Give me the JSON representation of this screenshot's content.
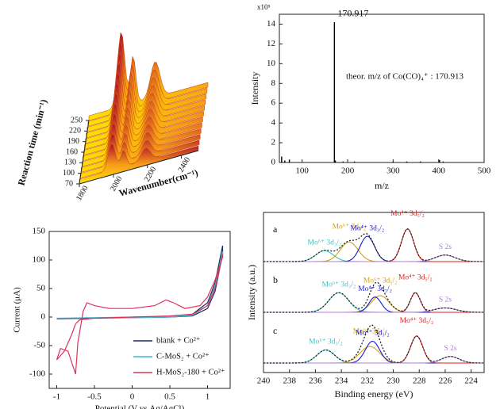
{
  "chart_data": [
    {
      "type": "surface3d",
      "xlabel": "Wavenumber(cm⁻¹)",
      "ylabel": "Reaction time (min⁻¹)",
      "xlim": [
        1800,
        2500
      ],
      "xticks": [
        1800,
        2000,
        2200,
        2400
      ],
      "ylim": [
        70,
        250
      ],
      "yticks": [
        70,
        100,
        130,
        160,
        190,
        220,
        250
      ]
    },
    {
      "type": "stem",
      "xlabel": "m/z",
      "ylabel": "Intensity",
      "y_multiplier": "x10⁵",
      "annotations": [
        "170.917",
        "theor.  m/z of Co(CO)₄⁺ : 170.913"
      ],
      "xlim": [
        50,
        500
      ],
      "xticks": [
        100,
        200,
        300,
        400,
        500
      ],
      "ylim": [
        0,
        15
      ],
      "yticks": [
        0,
        2,
        4,
        6,
        8,
        10,
        12,
        14
      ],
      "color": "#000000",
      "x": [
        55,
        62,
        72,
        170.917,
        173,
        190,
        215,
        300,
        330,
        360,
        402,
        410
      ],
      "values": [
        0.6,
        0.2,
        0.3,
        14.2,
        0.2,
        0.1,
        0.1,
        0.08,
        0.1,
        0.1,
        0.25,
        0.1
      ]
    },
    {
      "type": "line",
      "xlabel": "Potential (V vs.Ag/AgCl)",
      "ylabel": "Current (μA)",
      "xlim": [
        -1.1,
        1.3
      ],
      "xticks": [
        -1.0,
        -0.5,
        0.0,
        0.5,
        1.0
      ],
      "ylim": [
        -125,
        150
      ],
      "yticks": [
        -100,
        -50,
        0,
        50,
        100,
        150
      ],
      "legend": "lower right",
      "series": [
        {
          "name": "blank + Co²⁺",
          "color": "#1f2a5a",
          "x": [
            -1.0,
            -0.5,
            0,
            0.5,
            0.8,
            1.0,
            1.1,
            1.2,
            1.2,
            1.1,
            1.0,
            0.8,
            0.5,
            0,
            -0.5,
            -1.0
          ],
          "y": [
            -3,
            -2,
            -1,
            0,
            2,
            15,
            45,
            110,
            125,
            60,
            25,
            5,
            1,
            -1,
            -2,
            -3
          ]
        },
        {
          "name": "C-MoS₂ + Co²⁺",
          "color": "#3fb8cf",
          "x": [
            -1.0,
            -0.5,
            0,
            0.5,
            0.8,
            1.0,
            1.1,
            1.2,
            1.2,
            1.1,
            1.0,
            0.8,
            0.5,
            0,
            -0.5,
            -1.0
          ],
          "y": [
            -2,
            -1,
            0,
            1,
            4,
            20,
            52,
            108,
            115,
            55,
            20,
            3,
            0,
            -1,
            -1,
            -2
          ]
        },
        {
          "name": "H-MoS₂-180 + Co²⁺",
          "color": "#e0305a",
          "x": [
            -1.0,
            -0.95,
            -0.85,
            -0.8,
            -0.75,
            -0.72,
            -0.65,
            -0.6,
            -0.5,
            -0.3,
            0,
            0.3,
            0.45,
            0.55,
            0.7,
            0.9,
            1.0,
            1.1,
            1.2,
            1.2,
            1.1,
            1.0,
            0.8,
            0.5,
            0,
            -0.5,
            -0.7,
            -0.75,
            -0.8,
            -0.9,
            -1.0
          ],
          "y": [
            -75,
            -55,
            -60,
            -80,
            -100,
            -45,
            10,
            25,
            20,
            15,
            15,
            20,
            30,
            25,
            15,
            20,
            35,
            65,
            105,
            110,
            50,
            20,
            5,
            2,
            0,
            -2,
            -5,
            -12,
            -30,
            -60,
            -75
          ]
        }
      ]
    },
    {
      "type": "xps",
      "xlabel": "Binding energy (eV)",
      "ylabel": "Intensity (a.u.)",
      "xlim": [
        240,
        223
      ],
      "xticks": [
        240,
        238,
        236,
        234,
        232,
        230,
        228,
        226,
        224
      ],
      "ylim": [
        0,
        1
      ],
      "panels": [
        {
          "label": "a",
          "components": [
            {
              "name": "Mo⁶⁺ 3d₃/₂",
              "color": "#3fbfbf",
              "center": 235.3,
              "height": 0.25,
              "fwhm": 1.6
            },
            {
              "name": "Mo⁶⁺ 3d₅/₂",
              "color": "#d4a017",
              "center": 233.4,
              "height": 0.45,
              "fwhm": 1.6
            },
            {
              "name": "Mo⁴⁺ 3d₃/₂",
              "color": "#1a1acc",
              "center": 232.0,
              "height": 0.58,
              "fwhm": 1.3
            },
            {
              "name": "Mo⁴⁺ 3d₅/₂",
              "color": "#e0201e",
              "center": 228.9,
              "height": 0.75,
              "fwhm": 1.1
            },
            {
              "name": "S 2s",
              "color": "#b07fd0",
              "center": 226.0,
              "height": 0.15,
              "fwhm": 1.8
            }
          ]
        },
        {
          "label": "b",
          "components": [
            {
              "name": "Mo⁶⁺ 3d₃/₂",
              "color": "#3fbfbf",
              "center": 234.2,
              "height": 0.45,
              "fwhm": 1.8
            },
            {
              "name": "Mo⁶⁺ 3d₅/₂",
              "color": "#d4a017",
              "center": 231.0,
              "height": 0.38,
              "fwhm": 1.6
            },
            {
              "name": "Mo⁴⁺ 3d₃/₂",
              "color": "#1a1acc",
              "center": 231.4,
              "height": 0.35,
              "fwhm": 1.1
            },
            {
              "name": "Mo⁴⁺ 3d₅/₂",
              "color": "#e0201e",
              "center": 228.3,
              "height": 0.45,
              "fwhm": 0.9
            },
            {
              "name": "S 2s",
              "color": "#b07fd0",
              "center": 226.0,
              "height": 0.1,
              "fwhm": 2.0
            }
          ]
        },
        {
          "label": "c",
          "components": [
            {
              "name": "Mo⁶⁺ 3d₃/₂",
              "color": "#3fbfbf",
              "center": 235.2,
              "height": 0.3,
              "fwhm": 1.6
            },
            {
              "name": "Mo⁶⁺ 3d₅/₂",
              "color": "#d4a017",
              "center": 231.8,
              "height": 0.38,
              "fwhm": 1.8
            },
            {
              "name": "Mo⁴⁺ 3d₃/₂",
              "color": "#1a1acc",
              "center": 231.6,
              "height": 0.5,
              "fwhm": 1.3
            },
            {
              "name": "Mo⁴⁺ 3d₅/₂",
              "color": "#e0201e",
              "center": 228.2,
              "height": 0.62,
              "fwhm": 1.1
            },
            {
              "name": "S 2s",
              "color": "#b07fd0",
              "center": 225.6,
              "height": 0.15,
              "fwhm": 1.6
            }
          ]
        }
      ]
    }
  ]
}
